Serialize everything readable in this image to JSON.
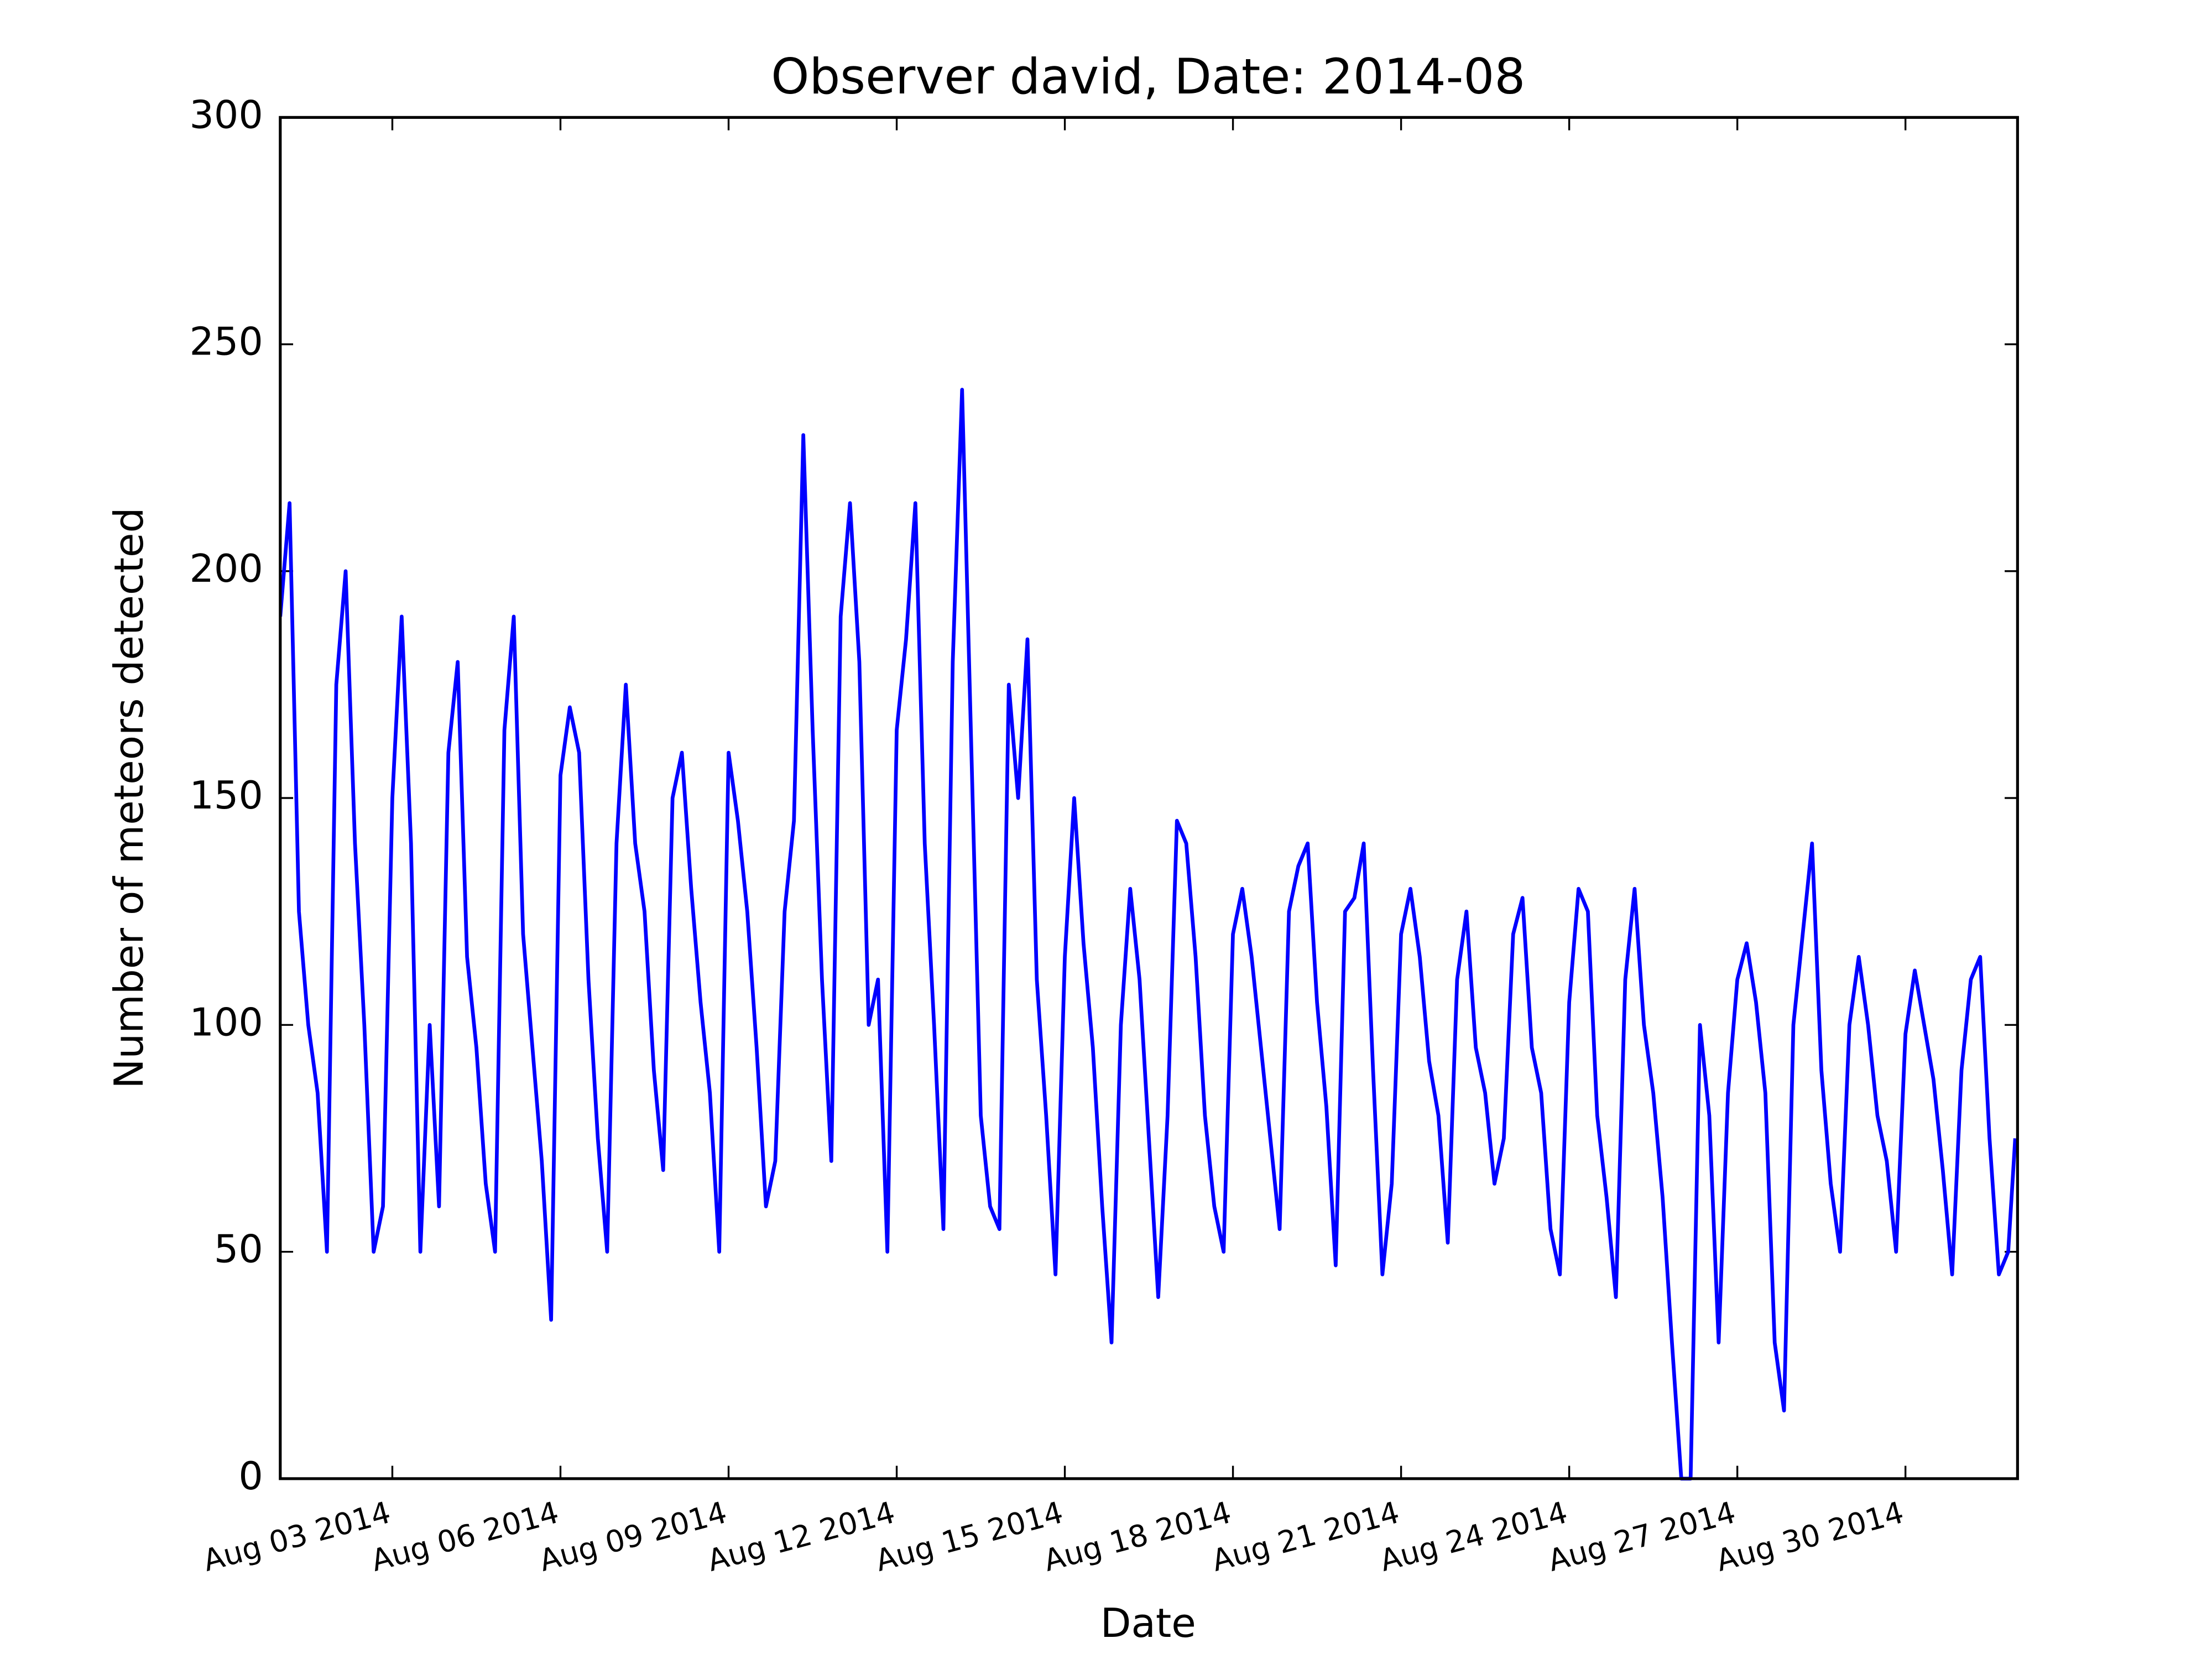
{
  "chart_data": {
    "type": "line",
    "title": "Observer david, Date: 2014-08",
    "xlabel": "Date",
    "ylabel": "Number of meteors detected",
    "xlim": [
      "2014-08-01T00:00",
      "2014-09-01T00:00"
    ],
    "xticks": [
      {
        "value": "2014-08-03T00:00",
        "label": "Aug 03 2014"
      },
      {
        "value": "2014-08-06T00:00",
        "label": "Aug 06 2014"
      },
      {
        "value": "2014-08-09T00:00",
        "label": "Aug 09 2014"
      },
      {
        "value": "2014-08-12T00:00",
        "label": "Aug 12 2014"
      },
      {
        "value": "2014-08-15T00:00",
        "label": "Aug 15 2014"
      },
      {
        "value": "2014-08-18T00:00",
        "label": "Aug 18 2014"
      },
      {
        "value": "2014-08-21T00:00",
        "label": "Aug 21 2014"
      },
      {
        "value": "2014-08-24T00:00",
        "label": "Aug 24 2014"
      },
      {
        "value": "2014-08-27T00:00",
        "label": "Aug 27 2014"
      },
      {
        "value": "2014-08-30T00:00",
        "label": "Aug 30 2014"
      }
    ],
    "ylim": [
      0,
      300
    ],
    "yticks": [
      0,
      50,
      100,
      150,
      200,
      250,
      300
    ],
    "grid": false,
    "x": [
      "2014-08-01T00:00",
      "2014-08-01T04:00",
      "2014-08-01T08:00",
      "2014-08-01T12:00",
      "2014-08-01T16:00",
      "2014-08-01T20:00",
      "2014-08-02T00:00",
      "2014-08-02T04:00",
      "2014-08-02T08:00",
      "2014-08-02T12:00",
      "2014-08-02T16:00",
      "2014-08-02T20:00",
      "2014-08-03T00:00",
      "2014-08-03T04:00",
      "2014-08-03T08:00",
      "2014-08-03T12:00",
      "2014-08-03T16:00",
      "2014-08-03T20:00",
      "2014-08-04T00:00",
      "2014-08-04T04:00",
      "2014-08-04T08:00",
      "2014-08-04T12:00",
      "2014-08-04T16:00",
      "2014-08-04T20:00",
      "2014-08-05T00:00",
      "2014-08-05T04:00",
      "2014-08-05T08:00",
      "2014-08-05T12:00",
      "2014-08-05T16:00",
      "2014-08-05T20:00",
      "2014-08-06T00:00",
      "2014-08-06T04:00",
      "2014-08-06T08:00",
      "2014-08-06T12:00",
      "2014-08-06T16:00",
      "2014-08-06T20:00",
      "2014-08-07T00:00",
      "2014-08-07T04:00",
      "2014-08-07T08:00",
      "2014-08-07T12:00",
      "2014-08-07T16:00",
      "2014-08-07T20:00",
      "2014-08-08T00:00",
      "2014-08-08T04:00",
      "2014-08-08T08:00",
      "2014-08-08T12:00",
      "2014-08-08T16:00",
      "2014-08-08T20:00",
      "2014-08-09T00:00",
      "2014-08-09T04:00",
      "2014-08-09T08:00",
      "2014-08-09T12:00",
      "2014-08-09T16:00",
      "2014-08-09T20:00",
      "2014-08-10T00:00",
      "2014-08-10T04:00",
      "2014-08-10T08:00",
      "2014-08-10T12:00",
      "2014-08-10T16:00",
      "2014-08-10T20:00",
      "2014-08-11T00:00",
      "2014-08-11T04:00",
      "2014-08-11T08:00",
      "2014-08-11T12:00",
      "2014-08-11T16:00",
      "2014-08-11T20:00",
      "2014-08-12T00:00",
      "2014-08-12T04:00",
      "2014-08-12T08:00",
      "2014-08-12T12:00",
      "2014-08-12T16:00",
      "2014-08-12T20:00",
      "2014-08-13T00:00",
      "2014-08-13T04:00",
      "2014-08-13T08:00",
      "2014-08-13T12:00",
      "2014-08-13T16:00",
      "2014-08-13T20:00",
      "2014-08-14T00:00",
      "2014-08-14T04:00",
      "2014-08-14T08:00",
      "2014-08-14T12:00",
      "2014-08-14T16:00",
      "2014-08-14T20:00",
      "2014-08-15T00:00",
      "2014-08-15T04:00",
      "2014-08-15T08:00",
      "2014-08-15T12:00",
      "2014-08-15T16:00",
      "2014-08-15T20:00",
      "2014-08-16T00:00",
      "2014-08-16T04:00",
      "2014-08-16T08:00",
      "2014-08-16T12:00",
      "2014-08-16T16:00",
      "2014-08-16T20:00",
      "2014-08-17T00:00",
      "2014-08-17T04:00",
      "2014-08-17T08:00",
      "2014-08-17T12:00",
      "2014-08-17T16:00",
      "2014-08-17T20:00",
      "2014-08-18T00:00",
      "2014-08-18T04:00",
      "2014-08-18T08:00",
      "2014-08-18T12:00",
      "2014-08-18T16:00",
      "2014-08-18T20:00",
      "2014-08-19T00:00",
      "2014-08-19T04:00",
      "2014-08-19T08:00",
      "2014-08-19T12:00",
      "2014-08-19T16:00",
      "2014-08-19T20:00",
      "2014-08-20T00:00",
      "2014-08-20T04:00",
      "2014-08-20T08:00",
      "2014-08-20T12:00",
      "2014-08-20T16:00",
      "2014-08-20T20:00",
      "2014-08-21T00:00",
      "2014-08-21T04:00",
      "2014-08-21T08:00",
      "2014-08-21T12:00",
      "2014-08-21T16:00",
      "2014-08-21T20:00",
      "2014-08-22T00:00",
      "2014-08-22T04:00",
      "2014-08-22T08:00",
      "2014-08-22T12:00",
      "2014-08-22T16:00",
      "2014-08-22T20:00",
      "2014-08-23T00:00",
      "2014-08-23T04:00",
      "2014-08-23T08:00",
      "2014-08-23T12:00",
      "2014-08-23T16:00",
      "2014-08-23T20:00",
      "2014-08-24T00:00",
      "2014-08-24T04:00",
      "2014-08-24T08:00",
      "2014-08-24T12:00",
      "2014-08-24T16:00",
      "2014-08-24T20:00",
      "2014-08-25T00:00",
      "2014-08-25T04:00",
      "2014-08-25T08:00",
      "2014-08-25T12:00",
      "2014-08-25T16:00",
      "2014-08-25T20:00",
      "2014-08-26T00:00",
      "2014-08-26T04:00",
      "2014-08-26T08:00",
      "2014-08-26T12:00",
      "2014-08-26T16:00",
      "2014-08-26T20:00",
      "2014-08-27T00:00",
      "2014-08-27T04:00",
      "2014-08-27T08:00",
      "2014-08-27T12:00",
      "2014-08-27T16:00",
      "2014-08-27T20:00",
      "2014-08-28T00:00",
      "2014-08-28T04:00",
      "2014-08-28T08:00",
      "2014-08-28T12:00",
      "2014-08-28T16:00",
      "2014-08-28T20:00",
      "2014-08-29T00:00",
      "2014-08-29T04:00",
      "2014-08-29T08:00",
      "2014-08-29T12:00",
      "2014-08-29T16:00",
      "2014-08-29T20:00",
      "2014-08-30T00:00",
      "2014-08-30T04:00",
      "2014-08-30T08:00",
      "2014-08-30T12:00",
      "2014-08-30T16:00",
      "2014-08-30T20:00",
      "2014-08-31T00:00",
      "2014-08-31T04:00",
      "2014-08-31T08:00",
      "2014-08-31T12:00",
      "2014-08-31T16:00",
      "2014-08-31T20:00",
      "2014-08-31T23:00"
    ],
    "series": [
      {
        "color": "#0000ff",
        "values": [
          190,
          215,
          125,
          100,
          85,
          50,
          175,
          200,
          140,
          100,
          50,
          60,
          150,
          190,
          140,
          50,
          100,
          60,
          160,
          180,
          115,
          95,
          65,
          50,
          165,
          190,
          120,
          95,
          70,
          35,
          155,
          170,
          160,
          110,
          75,
          50,
          140,
          175,
          140,
          125,
          90,
          68,
          150,
          160,
          130,
          105,
          85,
          50,
          160,
          145,
          125,
          95,
          60,
          70,
          125,
          145,
          230,
          165,
          110,
          70,
          190,
          215,
          180,
          100,
          110,
          50,
          165,
          185,
          215,
          140,
          100,
          55,
          180,
          240,
          160,
          80,
          60,
          55,
          175,
          150,
          185,
          110,
          80,
          45,
          115,
          150,
          118,
          95,
          60,
          30,
          100,
          130,
          110,
          75,
          40,
          80,
          145,
          140,
          115,
          80,
          60,
          50,
          120,
          130,
          115,
          95,
          75,
          55,
          125,
          135,
          140,
          105,
          82,
          47,
          125,
          128,
          140,
          90,
          45,
          65,
          120,
          130,
          115,
          92,
          80,
          52,
          110,
          125,
          95,
          85,
          65,
          75,
          120,
          128,
          95,
          85,
          55,
          45,
          105,
          130,
          125,
          80,
          62,
          40,
          110,
          130,
          100,
          85,
          62,
          30,
          0,
          0,
          100,
          80,
          30,
          85,
          110,
          118,
          105,
          85,
          30,
          15,
          100,
          120,
          140,
          90,
          65,
          50,
          100,
          115,
          100,
          80,
          70,
          50,
          98,
          112,
          100,
          88,
          68,
          45,
          90,
          110,
          115,
          75,
          45,
          50,
          75
        ]
      }
    ]
  }
}
